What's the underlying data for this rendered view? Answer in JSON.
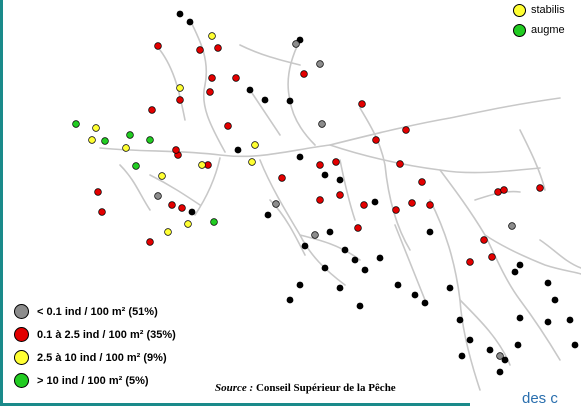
{
  "colors": {
    "gray": "#8c8c8c",
    "red": "#e20000",
    "yellow": "#ffff33",
    "green": "#22cc22",
    "black": "#000000",
    "river": "#c8c8c8",
    "frame": "#1a8a8a"
  },
  "legend": [
    {
      "label": "< 0.1 ind / 100 m² (51%)",
      "color": "#8c8c8c"
    },
    {
      "label": "0.1 à 2.5 ind / 100 m² (35%)",
      "color": "#e20000"
    },
    {
      "label": "2.5 à 10 ind / 100 m² (9%)",
      "color": "#ffff33"
    },
    {
      "label": "> 10 ind / 100 m² (5%)",
      "color": "#22cc22"
    }
  ],
  "source": {
    "prefix": "Source :",
    "text": "Conseil Supérieur de la Pêche"
  },
  "top_right_legend": [
    {
      "label": "stabilis",
      "color": "#ffff33"
    },
    {
      "label": "augme",
      "color": "#22cc22"
    }
  ],
  "partial_text": "des c"
}
